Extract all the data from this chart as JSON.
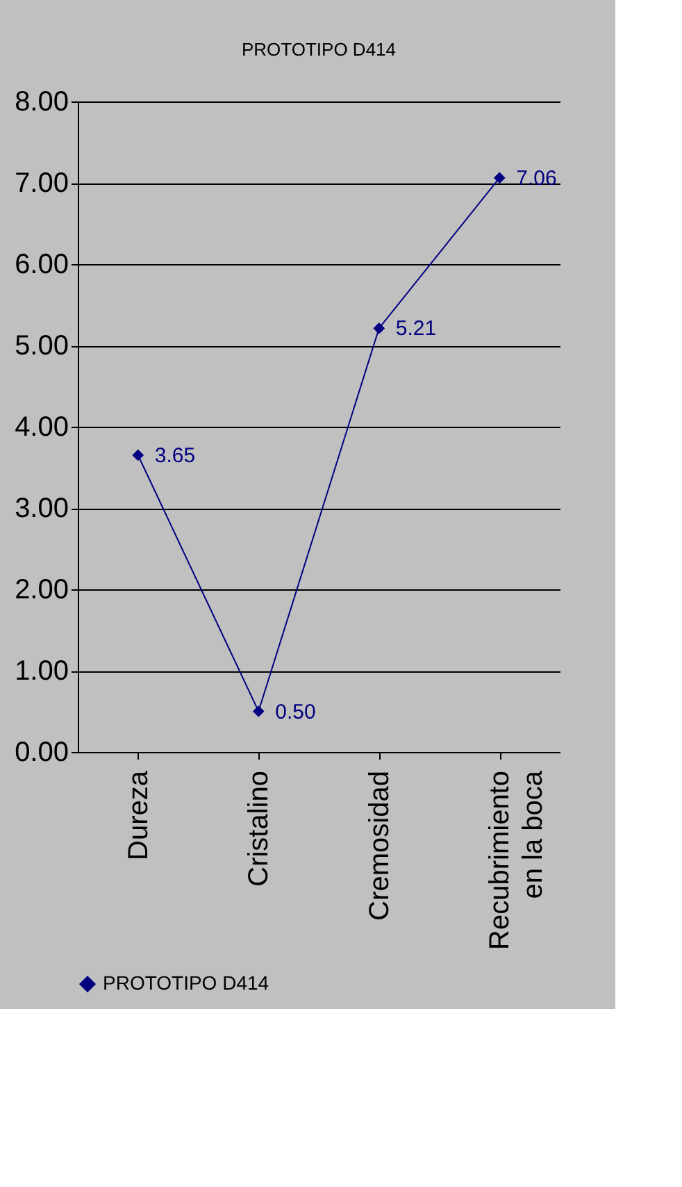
{
  "chart_data": {
    "type": "line",
    "title": "PROTOTIPO D414",
    "categories": [
      "Dureza",
      "Cristalino",
      "Cremosidad",
      "Recubrimiento en la boca"
    ],
    "series": [
      {
        "name": "PROTOTIPO D414",
        "color": "#000080",
        "values": [
          3.65,
          0.5,
          5.21,
          7.06
        ],
        "value_labels": [
          "3.65",
          "0.50",
          "5.21",
          "7.06"
        ]
      }
    ],
    "ylim": [
      0,
      8
    ],
    "yticks": [
      {
        "value": 0,
        "label": "0.00"
      },
      {
        "value": 1,
        "label": "1.00"
      },
      {
        "value": 2,
        "label": "2.00"
      },
      {
        "value": 3,
        "label": "3.00"
      },
      {
        "value": 4,
        "label": "4.00"
      },
      {
        "value": 5,
        "label": "5.00"
      },
      {
        "value": 6,
        "label": "6.00"
      },
      {
        "value": 7,
        "label": "7.00"
      },
      {
        "value": 8,
        "label": "8.00"
      }
    ],
    "grid": "y",
    "marker": "diamond",
    "line_style": "solid",
    "legend": "bottom"
  }
}
